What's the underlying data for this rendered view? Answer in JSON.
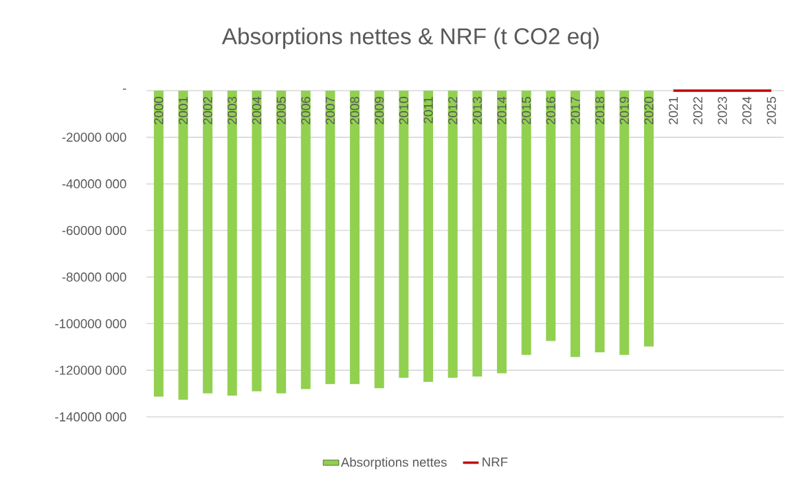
{
  "chart_data": {
    "type": "bar",
    "title": "Absorptions nettes & NRF (t CO2 eq)",
    "categories": [
      "2000",
      "2001",
      "2002",
      "2003",
      "2004",
      "2005",
      "2006",
      "2007",
      "2008",
      "2009",
      "2010",
      "2011",
      "2012",
      "2013",
      "2014",
      "2015",
      "2016",
      "2017",
      "2018",
      "2019",
      "2020",
      "2021",
      "2022",
      "2023",
      "2024",
      "2025"
    ],
    "series": [
      {
        "name": "Absorptions nettes",
        "color": "#92d050",
        "values": [
          -131300000,
          -132600000,
          -129900000,
          -130900000,
          -129000000,
          -129900000,
          -128100000,
          -125900000,
          -125900000,
          -127700000,
          -123200000,
          -125000000,
          -123200000,
          -122700000,
          -121300000,
          -113400000,
          -107400000,
          -114300000,
          -112300000,
          -113400000,
          -109800000,
          null,
          null,
          null,
          null,
          null
        ]
      },
      {
        "name": "NRF",
        "type": "line",
        "color": "#c00000",
        "values": [
          null,
          null,
          null,
          null,
          null,
          null,
          null,
          null,
          null,
          null,
          null,
          null,
          null,
          null,
          null,
          null,
          null,
          null,
          null,
          null,
          null,
          0,
          0,
          0,
          0,
          0
        ]
      }
    ],
    "ylim": [
      -140000000,
      0
    ],
    "yticks": [
      {
        "value": 0,
        "label": "-"
      },
      {
        "value": -20000000,
        "label": "-20000 000"
      },
      {
        "value": -40000000,
        "label": "-40000 000"
      },
      {
        "value": -60000000,
        "label": "-60000 000"
      },
      {
        "value": -80000000,
        "label": "-80000 000"
      },
      {
        "value": -100000000,
        "label": "-100000 000"
      },
      {
        "value": -120000000,
        "label": "-120000 000"
      },
      {
        "value": -140000000,
        "label": "-140000 000"
      }
    ],
    "grid": "y",
    "legend": "bottom"
  }
}
